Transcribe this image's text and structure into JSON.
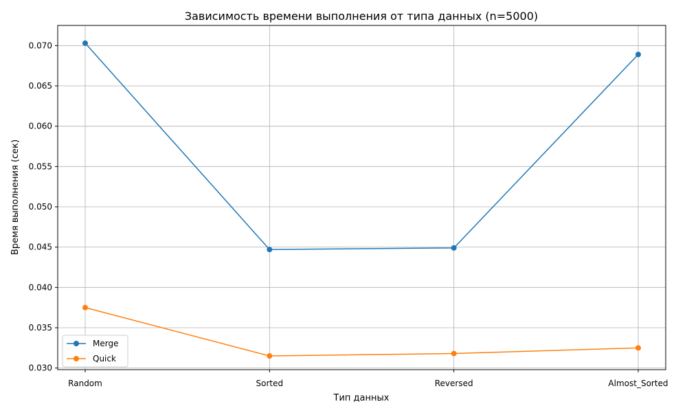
{
  "chart_data": {
    "type": "line",
    "title": "Зависимость времени выполнения от типа данных (n=5000)",
    "xlabel": "Тип данных",
    "ylabel": "Время выполнения (сек)",
    "categories": [
      "Random",
      "Sorted",
      "Reversed",
      "Almost_Sorted"
    ],
    "series": [
      {
        "name": "Merge",
        "color": "#1f77b4",
        "values": [
          0.0703,
          0.0447,
          0.0449,
          0.0689
        ]
      },
      {
        "name": "Quick",
        "color": "#ff7f0e",
        "values": [
          0.0375,
          0.0315,
          0.0318,
          0.0325
        ]
      }
    ],
    "y_ticks": [
      "0.030",
      "0.035",
      "0.040",
      "0.045",
      "0.050",
      "0.055",
      "0.060",
      "0.065",
      "0.070"
    ],
    "ylim": [
      0.0298,
      0.0725
    ],
    "grid": true,
    "legend_position": "lower-left"
  }
}
